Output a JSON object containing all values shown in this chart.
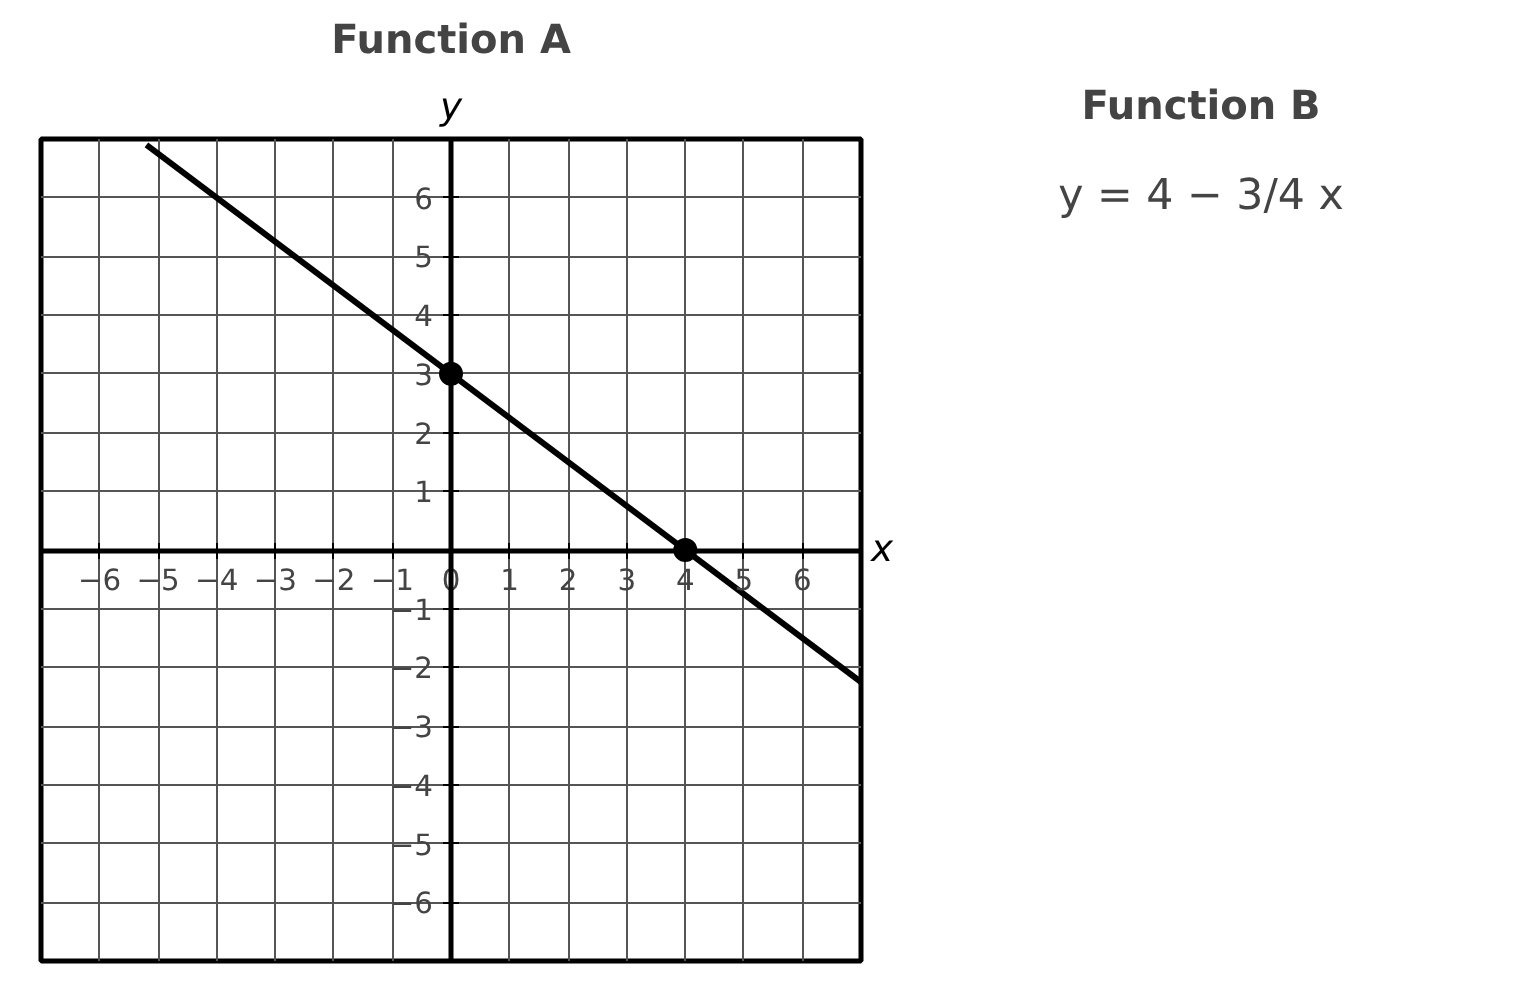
{
  "chart_data": [
    {
      "type": "line",
      "title": "Function A",
      "xlabel": "x",
      "ylabel": "y",
      "xlim": [
        -7,
        7
      ],
      "ylim": [
        -7,
        7
      ],
      "xticks": [
        -6,
        -5,
        -4,
        -3,
        -2,
        -1,
        0,
        1,
        2,
        3,
        4,
        5,
        6
      ],
      "yticks": [
        -6,
        -5,
        -4,
        -3,
        -2,
        -1,
        1,
        2,
        3,
        4,
        5,
        6
      ],
      "grid": true,
      "series": [
        {
          "type": "line",
          "x": [
            -5.2,
            7
          ],
          "values": [
            6.9,
            -2.25
          ],
          "color": "#000000",
          "marker": "none"
        },
        {
          "type": "scatter",
          "x": [
            0,
            4
          ],
          "values": [
            3,
            0
          ],
          "color": "#000000",
          "marker": "circle"
        }
      ]
    },
    {
      "type": "other",
      "title": "Function B",
      "annotations": [
        "y = 4 − 3/4 x"
      ]
    }
  ]
}
